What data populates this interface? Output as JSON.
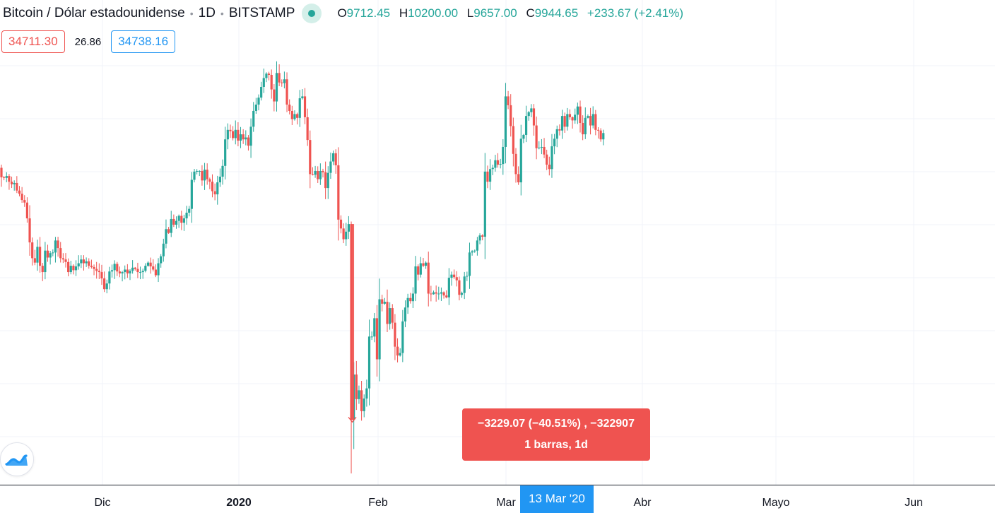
{
  "header": {
    "title": "Bitcoin / Dólar estadounidense",
    "interval": "1D",
    "exchange": "BITSTAMP",
    "ohlc": {
      "open_label": "O",
      "open": "9712.45",
      "high_label": "H",
      "high": "10200.00",
      "low_label": "L",
      "low": "9657.00",
      "close_label": "C",
      "close": "9944.65",
      "change": "+233.67 (+2.41%)"
    }
  },
  "indicator": {
    "bid": "34711.30",
    "spread": "26.86",
    "ask": "34738.16"
  },
  "measure": {
    "line1": "−3229.07 (−40.51%) , −322907",
    "line2": "1 barras, 1d"
  },
  "crosshair": {
    "date_label": "13 Mar '20"
  },
  "colors": {
    "up": "#26a69a",
    "down": "#ef5350",
    "grid": "#f0f3fa",
    "crosshair_label": "#2196f3"
  },
  "logo": {
    "icon": "tradingview-logo-icon"
  },
  "chart_data": {
    "type": "candlestick",
    "symbol": "BTCUSD",
    "interval": "1D",
    "x_tick_labels": [
      "Dic",
      "2020",
      "Feb",
      "Mar",
      "Abr",
      "Mayo",
      "Jun"
    ],
    "grid": true,
    "y_axis_labels_visible": false,
    "ohlc_first_day": [
      8850,
      8900,
      8550,
      8700
    ],
    "approx_daily_closes": [
      8700,
      8690,
      8720,
      8630,
      8590,
      8610,
      8490,
      8440,
      8340,
      8300,
      8050,
      7670,
      7420,
      7350,
      7600,
      7300,
      7200,
      7540,
      7430,
      7500,
      7510,
      7700,
      7580,
      7420,
      7400,
      7360,
      7200,
      7300,
      7230,
      7290,
      7340,
      7400,
      7340,
      7370,
      7300,
      7280,
      7250,
      7220,
      7200,
      7100,
      6930,
      7020,
      7210,
      7230,
      7330,
      7210,
      7180,
      7200,
      7240,
      7180,
      7220,
      7270,
      7250,
      7200,
      7200,
      7220,
      7300,
      7350,
      7290,
      7240,
      7150,
      7340,
      7450,
      7650,
      7880,
      7820,
      8040,
      7950,
      8010,
      8090,
      7980,
      8050,
      8140,
      8200,
      8660,
      8790,
      8800,
      8800,
      8650,
      8820,
      8670,
      8630,
      8480,
      8430,
      8620,
      8710,
      8880,
      9300,
      9450,
      9430,
      9320,
      9450,
      9280,
      9380,
      9300,
      9330,
      9200,
      9500,
      9750,
      9850,
      9960,
      10130,
      10270,
      10340,
      10320,
      10090,
      9900,
      10350,
      10200,
      10190,
      10250,
      9850,
      9750,
      9620,
      9700,
      9640,
      9950,
      9980,
      9650,
      9290,
      8750,
      8740,
      8800,
      8670,
      8800,
      8780,
      8530,
      8770,
      8950,
      9080,
      8890,
      8030,
      7890,
      7720,
      7840,
      7960,
      4860,
      5580,
      5190,
      5330,
      5000,
      5200,
      5360,
      6180,
      6180,
      6470,
      5820,
      6770,
      6700,
      6730,
      6380,
      6630,
      6400,
      6020,
      5880,
      5920,
      6420,
      6640,
      6790,
      6740,
      6860,
      7290,
      7160,
      7340,
      7300,
      7350,
      6860,
      6850,
      6880,
      6860,
      6860,
      6880,
      6830,
      6800,
      7110,
      7160,
      7120,
      7070,
      6840,
      6870,
      7130,
      7140,
      7510,
      7530,
      7540,
      7700,
      7780,
      7760,
      8790,
      8630,
      8830,
      8850,
      8970,
      8900,
      8910,
      9180,
      9980,
      9840,
      9510,
      9070,
      8750,
      8620,
      9310,
      9370,
      9670,
      9730,
      9790,
      9520,
      9160,
      9170,
      9180,
      9060,
      8900,
      8830,
      9190,
      9310,
      9460,
      9440,
      9670,
      9500,
      9700,
      9650,
      9600,
      9690,
      9820,
      9560,
      9380,
      9640,
      9670,
      9520,
      9700,
      9450,
      9440,
      9300,
      9400
    ],
    "measurement": {
      "change": -3229.07,
      "change_percent": -40.51,
      "change_ticks": -322907,
      "bars": 1,
      "interval": "1d"
    }
  }
}
